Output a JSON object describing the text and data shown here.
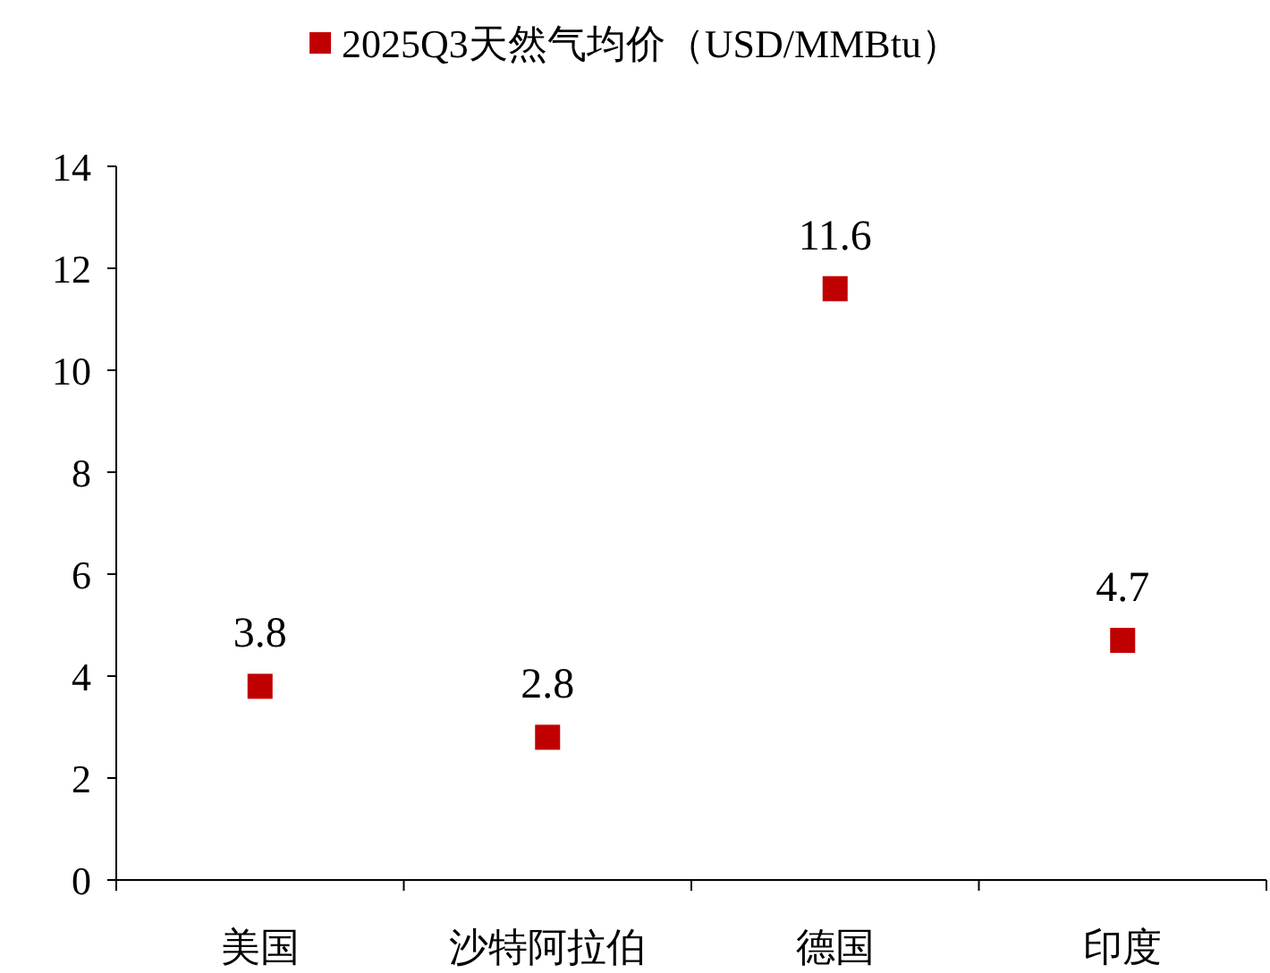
{
  "chart_data": {
    "type": "scatter",
    "categories": [
      "美国",
      "沙特阿拉伯",
      "德国",
      "印度"
    ],
    "series": [
      {
        "name": "2025Q3天然气均价（USD/MMBtu）",
        "color": "#c00000",
        "values": [
          3.8,
          2.8,
          11.6,
          4.7
        ]
      }
    ],
    "ylim": [
      0,
      14
    ],
    "yticks": [
      0,
      2,
      4,
      6,
      8,
      10,
      12,
      14
    ],
    "data_labels": true,
    "marker": "square",
    "legend": "top",
    "grid": false
  }
}
